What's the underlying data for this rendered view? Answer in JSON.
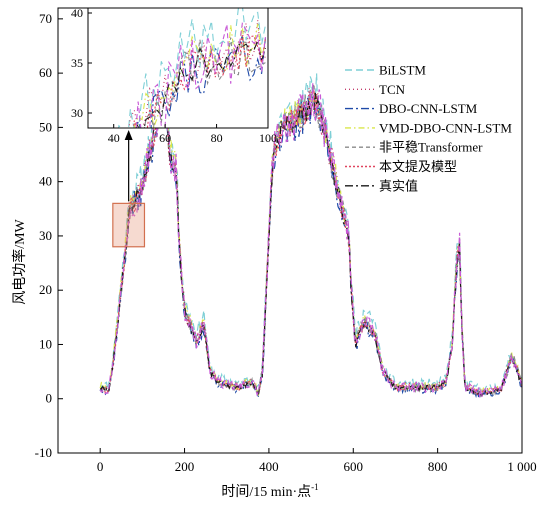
{
  "chart_data": {
    "type": "line",
    "title": "",
    "xlabel": "时间/15 min·点",
    "xlabel_sup": "-1",
    "ylabel": "风电功率/MW",
    "xlim": [
      -100,
      1000
    ],
    "ylim": [
      -10,
      72
    ],
    "xticks": [
      0,
      200,
      400,
      600,
      800,
      1000
    ],
    "xtick_labels": [
      "0",
      "200",
      "400",
      "600",
      "800",
      "1 000"
    ],
    "yticks": [
      -10,
      0,
      10,
      20,
      30,
      40,
      50,
      60,
      70
    ],
    "ytick_labels": [
      "-10",
      "0",
      "10",
      "20",
      "30",
      "40",
      "50",
      "60",
      "70"
    ],
    "grid": false,
    "legend_position": "right",
    "truth_profile": [
      [
        0,
        2
      ],
      [
        20,
        1.5
      ],
      [
        30,
        6
      ],
      [
        50,
        20
      ],
      [
        70,
        35
      ],
      [
        95,
        38
      ],
      [
        120,
        46
      ],
      [
        140,
        53
      ],
      [
        155,
        55
      ],
      [
        165,
        45
      ],
      [
        180,
        42
      ],
      [
        190,
        25
      ],
      [
        200,
        16
      ],
      [
        215,
        13
      ],
      [
        230,
        10
      ],
      [
        245,
        14
      ],
      [
        260,
        5
      ],
      [
        280,
        3
      ],
      [
        300,
        2.5
      ],
      [
        330,
        2
      ],
      [
        360,
        3
      ],
      [
        375,
        1
      ],
      [
        385,
        5
      ],
      [
        400,
        30
      ],
      [
        410,
        45
      ],
      [
        430,
        50
      ],
      [
        460,
        51
      ],
      [
        490,
        53
      ],
      [
        510,
        55
      ],
      [
        530,
        50
      ],
      [
        550,
        43
      ],
      [
        575,
        34
      ],
      [
        590,
        30
      ],
      [
        595,
        20
      ],
      [
        605,
        10
      ],
      [
        625,
        14
      ],
      [
        650,
        12
      ],
      [
        670,
        5
      ],
      [
        700,
        2
      ],
      [
        760,
        2
      ],
      [
        800,
        2
      ],
      [
        820,
        3
      ],
      [
        835,
        10
      ],
      [
        845,
        25
      ],
      [
        852,
        28
      ],
      [
        858,
        12
      ],
      [
        865,
        2
      ],
      [
        900,
        1
      ],
      [
        950,
        1.5
      ],
      [
        965,
        5
      ],
      [
        975,
        8
      ],
      [
        990,
        5
      ],
      [
        1000,
        2
      ]
    ],
    "series": [
      {
        "name": "BiLSTM",
        "color": "#7ecfd6",
        "dash": "7,4",
        "bias": 2.0,
        "noise": 2.2,
        "seed": 11
      },
      {
        "name": "TCN",
        "color": "#c23a6a",
        "dash": "1,3",
        "bias": 0.4,
        "noise": 2.0,
        "seed": 23
      },
      {
        "name": "DBO-CNN-LSTM",
        "color": "#1f4aa8",
        "dash": "8,3,2,3",
        "bias": -0.5,
        "noise": 2.0,
        "seed": 37
      },
      {
        "name": "VMD-DBO-CNN-LSTM",
        "color": "#d9e64a",
        "dash": "6,3,1.5,3",
        "bias": 0.8,
        "noise": 1.8,
        "seed": 41
      },
      {
        "name": "非平稳Transformer",
        "color": "#8a8a8a",
        "dash": "4,3",
        "bias": 0.2,
        "noise": 1.9,
        "seed": 53
      },
      {
        "name": "本文提及模型",
        "color": "#e0455f",
        "dash": "2,2",
        "bias": 0.1,
        "noise": 1.5,
        "seed": 67
      },
      {
        "name": "真实值",
        "color": "#1a1a1a",
        "dash": "8,3,2,3",
        "bias": 0.0,
        "noise": 1.2,
        "seed": 79
      },
      {
        "name": "",
        "color": "#c85ad6",
        "dash": "5,3",
        "bias": 0.3,
        "noise": 2.4,
        "seed": 97
      }
    ],
    "inset": {
      "xlim": [
        30,
        100
      ],
      "ylim": [
        28.5,
        40.5
      ],
      "xticks": [
        40,
        60,
        80,
        100
      ],
      "yticks": [
        30,
        35,
        40
      ],
      "source_window": {
        "x": [
          30,
          105
        ],
        "y": [
          28,
          36
        ]
      }
    }
  }
}
